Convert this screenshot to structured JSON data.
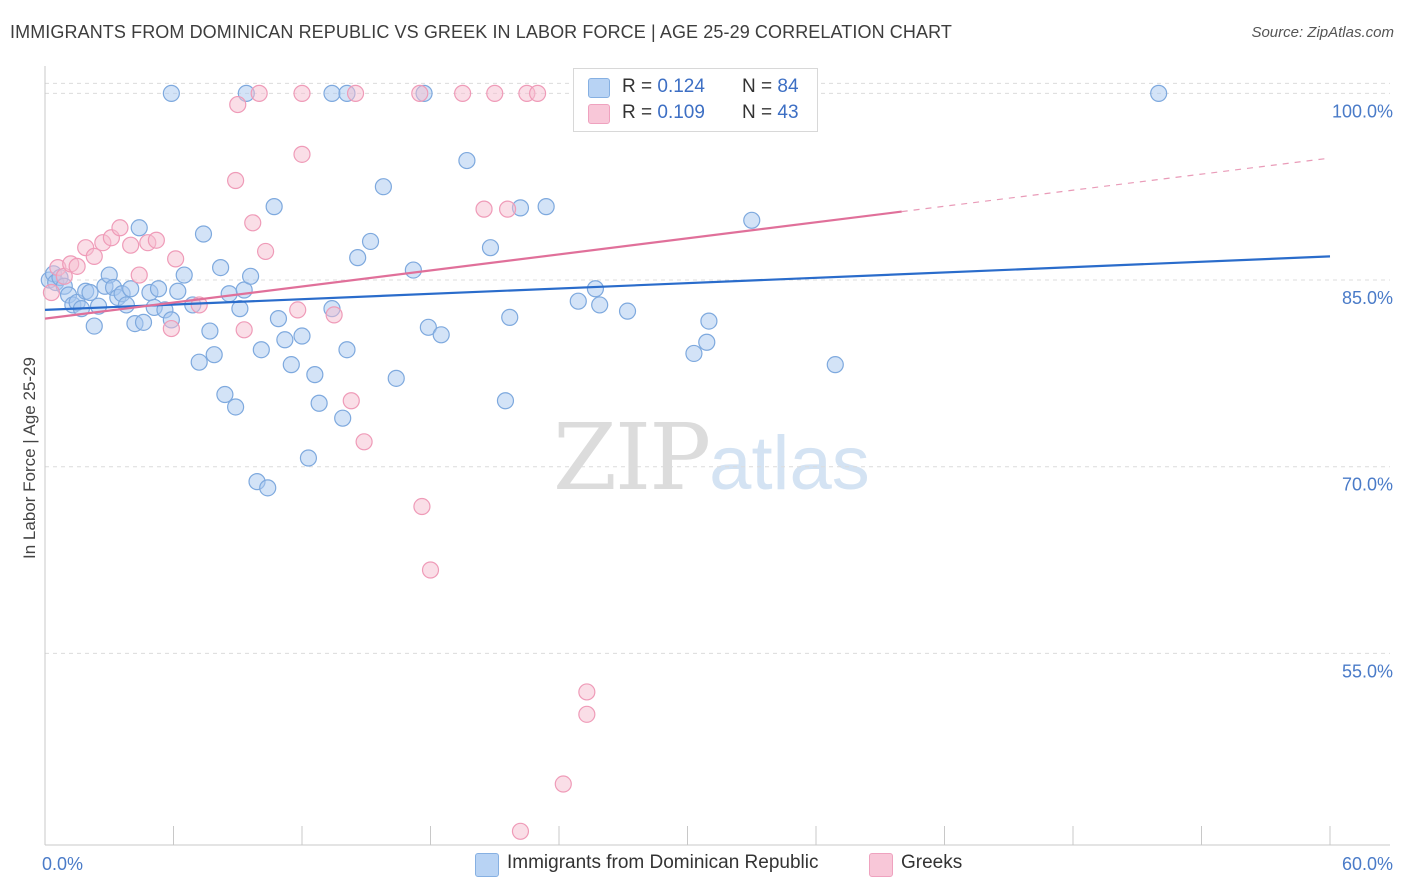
{
  "title": "IMMIGRANTS FROM DOMINICAN REPUBLIC VS GREEK IN LABOR FORCE | AGE 25-29 CORRELATION CHART",
  "source": "Source: ZipAtlas.com",
  "watermark": {
    "zip": "ZIP",
    "atlas": "atlas"
  },
  "legend": {
    "rows": [
      {
        "r_label": "R = ",
        "r_value": "0.124",
        "n_label": "N = ",
        "n_value": "84"
      },
      {
        "r_label": "R = ",
        "r_value": "0.109",
        "n_label": "N = ",
        "n_value": "43"
      }
    ]
  },
  "bottom_legend": {
    "series1": "Immigrants from Dominican Republic",
    "series2": "Greeks"
  },
  "colors": {
    "blue_fill": "#a8c8f0",
    "blue_stroke": "#7ea9de",
    "blue_line": "#2a6ccb",
    "pink_fill": "#f6bdd0",
    "pink_stroke": "#ef9bb8",
    "pink_line": "#e0709a",
    "tick_label": "#4a7bc8",
    "grid": "#dcdcdc"
  },
  "chart_data": {
    "type": "scatter",
    "title": "IMMIGRANTS FROM DOMINICAN REPUBLIC VS GREEK IN LABOR FORCE | AGE 25-29 CORRELATION CHART",
    "xlabel": "",
    "ylabel": "In Labor Force | Age 25-29",
    "xlim": [
      0,
      60
    ],
    "ylim": [
      39.6,
      102.2
    ],
    "x_tick_labels": [
      {
        "value": 0,
        "label": "0.0%"
      },
      {
        "value": 60,
        "label": "60.0%"
      }
    ],
    "y_tick_labels": [
      {
        "value": 55,
        "label": "55.0%"
      },
      {
        "value": 70,
        "label": "70.0%"
      },
      {
        "value": 85,
        "label": "85.0%"
      },
      {
        "value": 100,
        "label": "100.0%"
      }
    ],
    "series": [
      {
        "name": "Immigrants from Dominican Republic",
        "R": 0.124,
        "N": 84,
        "trend": {
          "x": [
            0,
            60
          ],
          "y": [
            82.6,
            86.9
          ],
          "dashed_from": null
        },
        "points": [
          [
            0.2,
            85.0
          ],
          [
            0.4,
            85.5
          ],
          [
            0.5,
            84.8
          ],
          [
            0.7,
            85.2
          ],
          [
            0.9,
            84.5
          ],
          [
            1.1,
            83.8
          ],
          [
            1.3,
            83.0
          ],
          [
            1.5,
            83.2
          ],
          [
            1.7,
            82.7
          ],
          [
            1.9,
            84.1
          ],
          [
            2.1,
            84.0
          ],
          [
            2.3,
            81.3
          ],
          [
            2.5,
            82.9
          ],
          [
            2.8,
            84.5
          ],
          [
            3.0,
            85.4
          ],
          [
            3.2,
            84.4
          ],
          [
            3.4,
            83.6
          ],
          [
            3.6,
            83.9
          ],
          [
            3.8,
            83.0
          ],
          [
            4.0,
            84.3
          ],
          [
            4.2,
            81.5
          ],
          [
            4.4,
            89.2
          ],
          [
            4.6,
            81.6
          ],
          [
            4.9,
            84.0
          ],
          [
            5.1,
            82.8
          ],
          [
            5.3,
            84.3
          ],
          [
            5.6,
            82.6
          ],
          [
            5.9,
            81.8
          ],
          [
            6.2,
            84.1
          ],
          [
            6.5,
            85.4
          ],
          [
            6.9,
            83.0
          ],
          [
            7.2,
            78.4
          ],
          [
            7.4,
            88.7
          ],
          [
            7.7,
            80.9
          ],
          [
            7.9,
            79.0
          ],
          [
            8.2,
            86.0
          ],
          [
            8.4,
            75.8
          ],
          [
            8.6,
            83.9
          ],
          [
            8.9,
            74.8
          ],
          [
            9.1,
            82.7
          ],
          [
            9.3,
            84.2
          ],
          [
            9.6,
            85.3
          ],
          [
            9.9,
            68.8
          ],
          [
            10.1,
            79.4
          ],
          [
            10.4,
            68.3
          ],
          [
            10.7,
            90.9
          ],
          [
            10.9,
            81.9
          ],
          [
            11.2,
            80.2
          ],
          [
            11.5,
            78.2
          ],
          [
            12.0,
            80.5
          ],
          [
            12.3,
            70.7
          ],
          [
            12.6,
            77.4
          ],
          [
            12.8,
            75.1
          ],
          [
            13.4,
            82.7
          ],
          [
            13.9,
            73.9
          ],
          [
            14.1,
            79.4
          ],
          [
            14.6,
            86.8
          ],
          [
            15.2,
            88.1
          ],
          [
            15.8,
            92.5
          ],
          [
            16.4,
            77.1
          ],
          [
            17.2,
            85.8
          ],
          [
            17.9,
            81.2
          ],
          [
            18.5,
            80.6
          ],
          [
            19.7,
            94.6
          ],
          [
            20.8,
            87.6
          ],
          [
            21.5,
            75.3
          ],
          [
            21.7,
            82.0
          ],
          [
            22.2,
            90.8
          ],
          [
            23.4,
            90.9
          ],
          [
            24.9,
            83.3
          ],
          [
            25.7,
            84.3
          ],
          [
            25.9,
            83.0
          ],
          [
            27.2,
            82.5
          ],
          [
            30.3,
            79.1
          ],
          [
            30.9,
            80.0
          ],
          [
            31.0,
            81.7
          ],
          [
            33.0,
            89.8
          ],
          [
            36.9,
            78.2
          ],
          [
            5.9,
            100.0
          ],
          [
            9.4,
            100.0
          ],
          [
            13.4,
            100.0
          ],
          [
            14.1,
            100.0
          ],
          [
            17.7,
            100.0
          ],
          [
            52.0,
            100.0
          ]
        ]
      },
      {
        "name": "Greeks",
        "R": 0.109,
        "N": 43,
        "trend": {
          "x": [
            0,
            60
          ],
          "y": [
            81.9,
            94.8
          ],
          "dashed_from": 40
        },
        "points": [
          [
            0.3,
            84.0
          ],
          [
            0.6,
            86.0
          ],
          [
            0.9,
            85.3
          ],
          [
            1.2,
            86.3
          ],
          [
            1.5,
            86.1
          ],
          [
            1.9,
            87.6
          ],
          [
            2.3,
            86.9
          ],
          [
            2.7,
            88.0
          ],
          [
            3.1,
            88.4
          ],
          [
            3.5,
            89.2
          ],
          [
            4.0,
            87.8
          ],
          [
            4.4,
            85.4
          ],
          [
            4.8,
            88.0
          ],
          [
            5.2,
            88.2
          ],
          [
            5.9,
            81.1
          ],
          [
            6.1,
            86.7
          ],
          [
            7.2,
            83.0
          ],
          [
            8.9,
            93.0
          ],
          [
            9.7,
            89.6
          ],
          [
            10.3,
            87.3
          ],
          [
            11.8,
            82.6
          ],
          [
            12.0,
            95.1
          ],
          [
            13.5,
            82.2
          ],
          [
            14.3,
            75.3
          ],
          [
            14.9,
            72.0
          ],
          [
            17.6,
            66.8
          ],
          [
            18.0,
            61.7
          ],
          [
            20.5,
            90.7
          ],
          [
            21.6,
            90.7
          ],
          [
            25.3,
            51.9
          ],
          [
            25.3,
            50.1
          ],
          [
            24.2,
            44.5
          ],
          [
            22.2,
            40.7
          ],
          [
            9.0,
            99.1
          ],
          [
            10.0,
            100.0
          ],
          [
            12.0,
            100.0
          ],
          [
            14.5,
            100.0
          ],
          [
            17.5,
            100.0
          ],
          [
            19.5,
            100.0
          ],
          [
            21.0,
            100.0
          ],
          [
            22.5,
            100.0
          ],
          [
            23.0,
            100.0
          ],
          [
            9.3,
            81.0
          ]
        ]
      }
    ]
  }
}
